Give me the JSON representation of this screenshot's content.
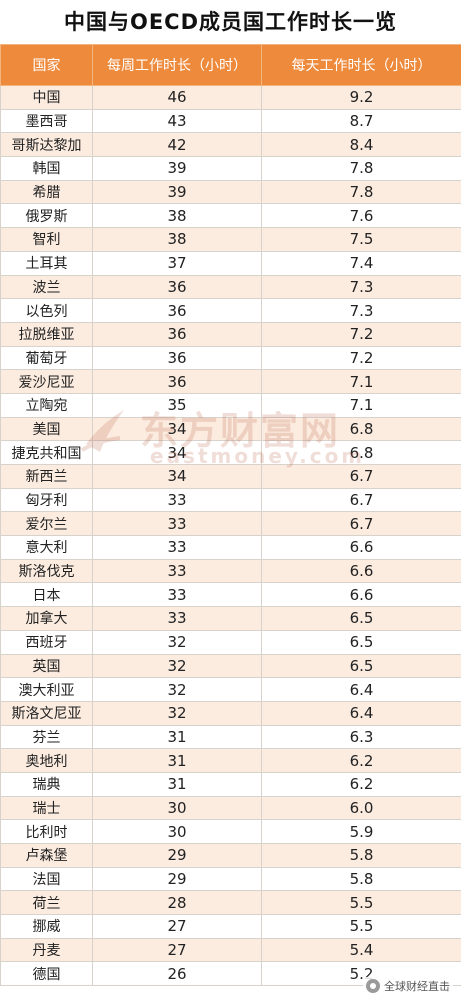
{
  "title": "中国与OECD成员国工作时长一览",
  "headers": [
    "国家",
    "每周工作时长（小时）",
    "每天工作时长（小时）"
  ],
  "rows": [
    [
      "中国",
      "46",
      "9.2"
    ],
    [
      "墨西哥",
      "43",
      "8.7"
    ],
    [
      "哥斯达黎加",
      "42",
      "8.4"
    ],
    [
      "韩国",
      "39",
      "7.8"
    ],
    [
      "希腊",
      "39",
      "7.8"
    ],
    [
      "俄罗斯",
      "38",
      "7.6"
    ],
    [
      "智利",
      "38",
      "7.5"
    ],
    [
      "土耳其",
      "37",
      "7.4"
    ],
    [
      "波兰",
      "36",
      "7.3"
    ],
    [
      "以色列",
      "36",
      "7.3"
    ],
    [
      "拉脱维亚",
      "36",
      "7.2"
    ],
    [
      "葡萄牙",
      "36",
      "7.2"
    ],
    [
      "爱沙尼亚",
      "36",
      "7.1"
    ],
    [
      "立陶宛",
      "35",
      "7.1"
    ],
    [
      "美国",
      "34",
      "6.8"
    ],
    [
      "捷克共和国",
      "34",
      "6.8"
    ],
    [
      "新西兰",
      "34",
      "6.7"
    ],
    [
      "匈牙利",
      "33",
      "6.7"
    ],
    [
      "爱尔兰",
      "33",
      "6.7"
    ],
    [
      "意大利",
      "33",
      "6.6"
    ],
    [
      "斯洛伐克",
      "33",
      "6.6"
    ],
    [
      "日本",
      "33",
      "6.6"
    ],
    [
      "加拿大",
      "33",
      "6.5"
    ],
    [
      "西班牙",
      "32",
      "6.5"
    ],
    [
      "英国",
      "32",
      "6.5"
    ],
    [
      "澳大利亚",
      "32",
      "6.4"
    ],
    [
      "斯洛文尼亚",
      "32",
      "6.4"
    ],
    [
      "芬兰",
      "31",
      "6.3"
    ],
    [
      "奥地利",
      "31",
      "6.2"
    ],
    [
      "瑞典",
      "31",
      "6.2"
    ],
    [
      "瑞士",
      "30",
      "6.0"
    ],
    [
      "比利时",
      "30",
      "5.9"
    ],
    [
      "卢森堡",
      "29",
      "5.8"
    ],
    [
      "法国",
      "29",
      "5.8"
    ],
    [
      "荷兰",
      "28",
      "5.5"
    ],
    [
      "挪威",
      "27",
      "5.5"
    ],
    [
      "丹麦",
      "27",
      "5.4"
    ],
    [
      "德国",
      "26",
      "5.2"
    ]
  ],
  "watermark": {
    "main": "东方财富网",
    "sub": "eastmoney.com"
  },
  "credit": {
    "text": "全球财经直击",
    "icon": "wechat-icon"
  },
  "colors": {
    "header_bg": "#ee8a3c",
    "stripe": "#fcece0"
  }
}
